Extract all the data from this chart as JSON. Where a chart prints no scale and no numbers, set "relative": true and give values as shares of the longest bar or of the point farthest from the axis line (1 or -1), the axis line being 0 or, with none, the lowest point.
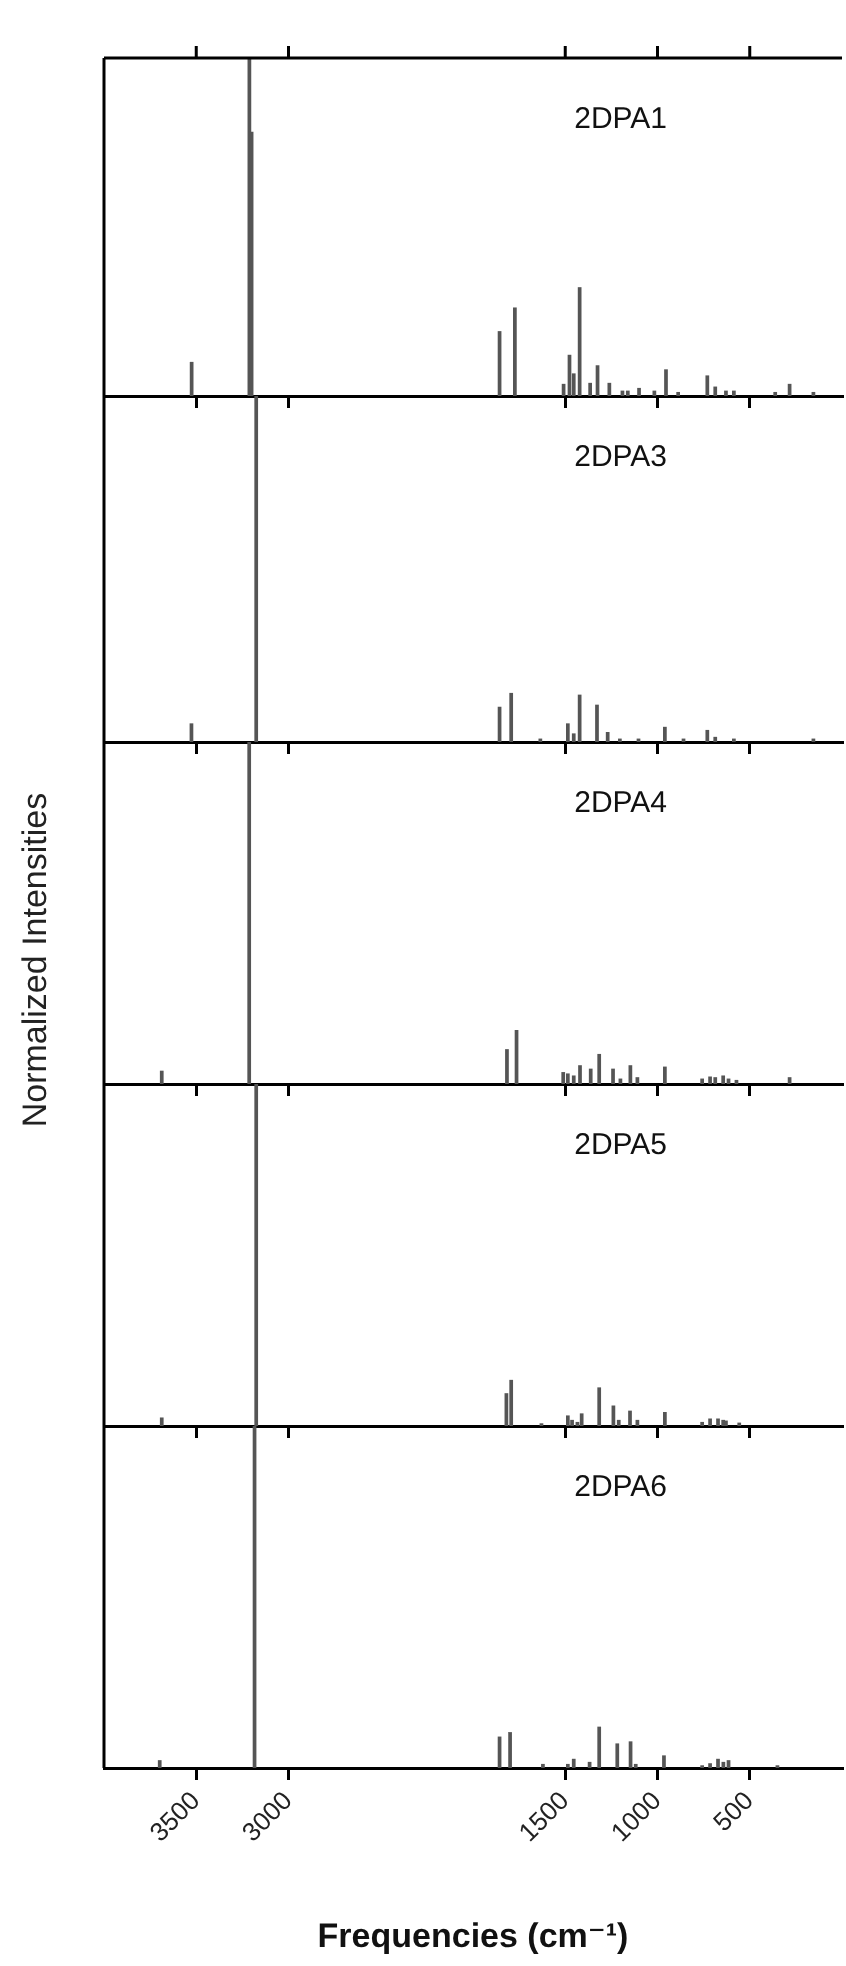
{
  "chart_data": [
    {
      "type": "bar",
      "title": "2DPA1",
      "relative": true,
      "color": "#555555",
      "xlim": [
        4000,
        0
      ],
      "xticks": [
        3500,
        3000,
        1500,
        1000,
        500
      ],
      "tick_labels": false,
      "x": [
        3525,
        3212,
        3200,
        1856,
        1773,
        1509,
        1477,
        1454,
        1422,
        1365,
        1325,
        1261,
        1190,
        1161,
        1100,
        1017,
        954,
        888,
        730,
        687,
        629,
        586,
        362,
        284,
        155
      ],
      "values": [
        0.099,
        1,
        0.78,
        0.19,
        0.26,
        0.034,
        0.12,
        0.065,
        0.32,
        0.037,
        0.089,
        0.037,
        0.014,
        0.014,
        0.022,
        0.014,
        0.077,
        0.01,
        0.059,
        0.026,
        0.014,
        0.014,
        0.01,
        0.034,
        0.01
      ]
    },
    {
      "type": "bar",
      "title": "2DPA3",
      "relative": true,
      "color": "#555555",
      "xlim": [
        4000,
        0
      ],
      "xticks": [
        3500,
        3000,
        1500,
        1000,
        500
      ],
      "tick_labels": false,
      "x": [
        3526,
        3175,
        1856,
        1793,
        1635,
        1486,
        1454,
        1422,
        1328,
        1270,
        1204,
        1103,
        960,
        859,
        730,
        687,
        586,
        155
      ],
      "values": [
        0.052,
        1,
        0.1,
        0.14,
        0.008,
        0.052,
        0.023,
        0.135,
        0.106,
        0.027,
        0.008,
        0.008,
        0.042,
        0.008,
        0.033,
        0.013,
        0.008,
        0.008
      ]
    },
    {
      "type": "bar",
      "title": "2DPA4",
      "ylabel": "Normalized Intensities",
      "relative": true,
      "color": "#555555",
      "xlim": [
        4000,
        0
      ],
      "xticks": [
        3500,
        3000,
        1500,
        1000,
        500
      ],
      "tick_labels": false,
      "x": [
        3687,
        3213,
        1816,
        1764,
        1511,
        1486,
        1454,
        1420,
        1362,
        1316,
        1241,
        1201,
        1147,
        1109,
        960,
        758,
        715,
        687,
        644,
        615,
        572,
        284
      ],
      "values": [
        0.037,
        1,
        0.1,
        0.156,
        0.033,
        0.029,
        0.023,
        0.053,
        0.043,
        0.086,
        0.043,
        0.014,
        0.053,
        0.018,
        0.049,
        0.014,
        0.02,
        0.018,
        0.023,
        0.014,
        0.01,
        0.018
      ]
    },
    {
      "type": "bar",
      "title": "2DPA5",
      "relative": true,
      "color": "#555555",
      "xlim": [
        4000,
        0
      ],
      "xticks": [
        3500,
        3000,
        1500,
        1000,
        500
      ],
      "tick_labels": false,
      "x": [
        3687,
        3175,
        1819,
        1793,
        1629,
        1486,
        1463,
        1434,
        1411,
        1316,
        1239,
        1210,
        1149,
        1109,
        960,
        758,
        715,
        672,
        644,
        629,
        557
      ],
      "values": [
        0.023,
        1,
        0.094,
        0.133,
        0.006,
        0.029,
        0.016,
        0.01,
        0.035,
        0.111,
        0.058,
        0.016,
        0.043,
        0.016,
        0.039,
        0.01,
        0.02,
        0.02,
        0.016,
        0.014,
        0.008
      ]
    },
    {
      "type": "bar",
      "title": "2DPA6",
      "xlabel": "Frequencies (cm⁻¹)",
      "relative": true,
      "color": "#555555",
      "xlim": [
        4000,
        0
      ],
      "xticks": [
        3500,
        3000,
        1500,
        1000,
        500
      ],
      "x": [
        3698,
        3184,
        1856,
        1799,
        1621,
        1486,
        1454,
        1368,
        1316,
        1218,
        1146,
        1118,
        965,
        758,
        715,
        672,
        643,
        615,
        350
      ],
      "values": [
        0.021,
        1,
        0.09,
        0.103,
        0.01,
        0.01,
        0.025,
        0.016,
        0.119,
        0.07,
        0.076,
        0.01,
        0.035,
        0.006,
        0.012,
        0.025,
        0.016,
        0.021,
        0.006
      ]
    }
  ]
}
